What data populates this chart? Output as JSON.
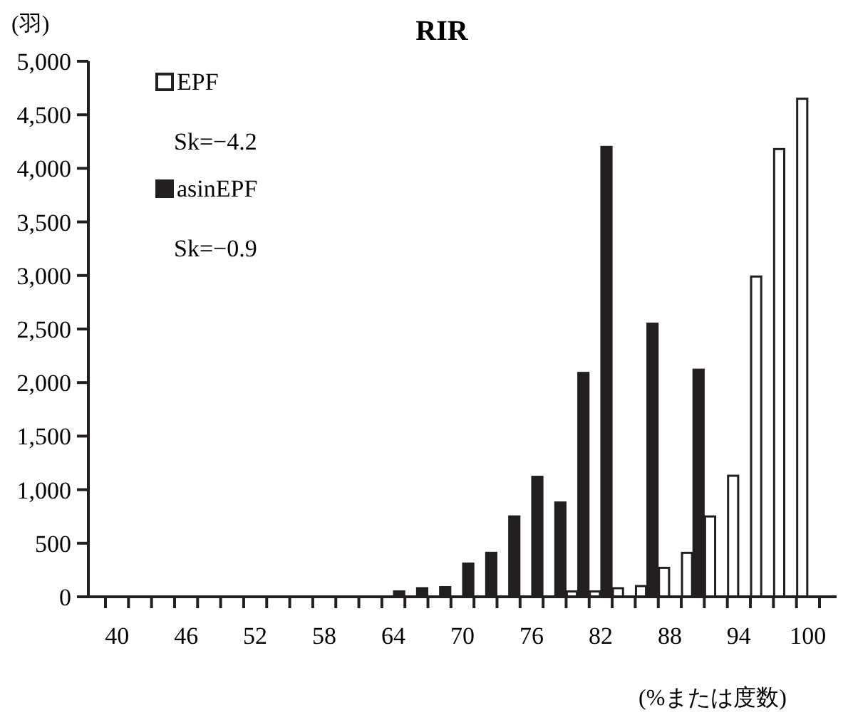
{
  "chart_data": {
    "type": "bar",
    "title": "RIR",
    "ylabel": "(羽)",
    "xlabel": "(%または度数)",
    "categories": [
      "40",
      null,
      null,
      "46",
      null,
      null,
      "52",
      null,
      null,
      "58",
      null,
      null,
      "64",
      null,
      null,
      "70",
      null,
      null,
      "76",
      null,
      null,
      "82",
      null,
      null,
      "88",
      null,
      null,
      "94",
      null,
      null,
      "100"
    ],
    "series": [
      {
        "name": "EPF",
        "color": "#ffffff",
        "values": [
          0,
          0,
          0,
          0,
          0,
          0,
          0,
          0,
          0,
          0,
          0,
          0,
          0,
          0,
          0,
          0,
          0,
          0,
          0,
          0,
          50,
          50,
          80,
          100,
          270,
          410,
          750,
          1130,
          2990,
          4180,
          4650
        ]
      },
      {
        "name": "asinEPF",
        "color": "#231f20",
        "values": [
          0,
          0,
          0,
          0,
          0,
          0,
          0,
          0,
          0,
          0,
          0,
          0,
          50,
          80,
          90,
          310,
          410,
          750,
          1120,
          880,
          2090,
          4200,
          0,
          2550,
          0,
          2120,
          0,
          0,
          0,
          0,
          0
        ]
      }
    ],
    "annotations": [
      "Sk=−4.2",
      "Sk=−0.9"
    ],
    "ylim": [
      0,
      5000
    ],
    "yticks": [
      0,
      500,
      {
        "value": 1000,
        "label": "1,000"
      },
      {
        "value": 1500,
        "label": "1,500"
      },
      {
        "value": 2000,
        "label": "2,000"
      },
      {
        "value": 2500,
        "label": "2,500"
      },
      {
        "value": 3000,
        "label": "3,000"
      },
      {
        "value": 3500,
        "label": "3,500"
      },
      {
        "value": 4000,
        "label": "4,000"
      },
      {
        "value": 4500,
        "label": "4,500"
      },
      {
        "value": 5000,
        "label": "5,000"
      }
    ],
    "legend": "top left",
    "grid": false
  }
}
